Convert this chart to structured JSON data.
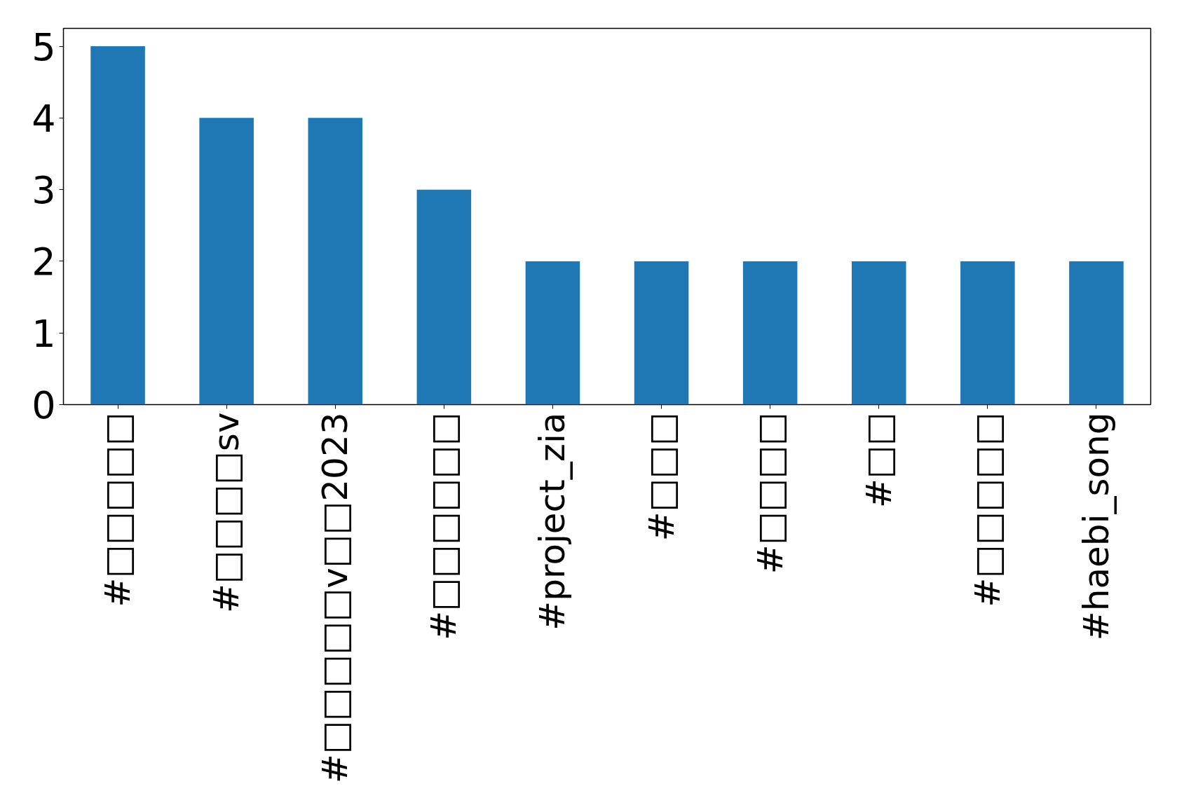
{
  "chart_data": {
    "type": "bar",
    "categories": [
      "#□□□□□",
      "#□□□□sv",
      "#□□□□□v□□2023",
      "#□□□□□□",
      "#project_zia",
      "#□□□",
      "#□□□□",
      "#□□",
      "#□□□□□",
      "#haebi_song"
    ],
    "values": [
      5,
      4,
      4,
      3,
      2,
      2,
      2,
      2,
      2,
      2
    ],
    "color": "#1f77b4",
    "ylim": [
      0,
      5.25
    ],
    "yticks": [
      0,
      1,
      2,
      3,
      4,
      5
    ],
    "grid": false
  }
}
